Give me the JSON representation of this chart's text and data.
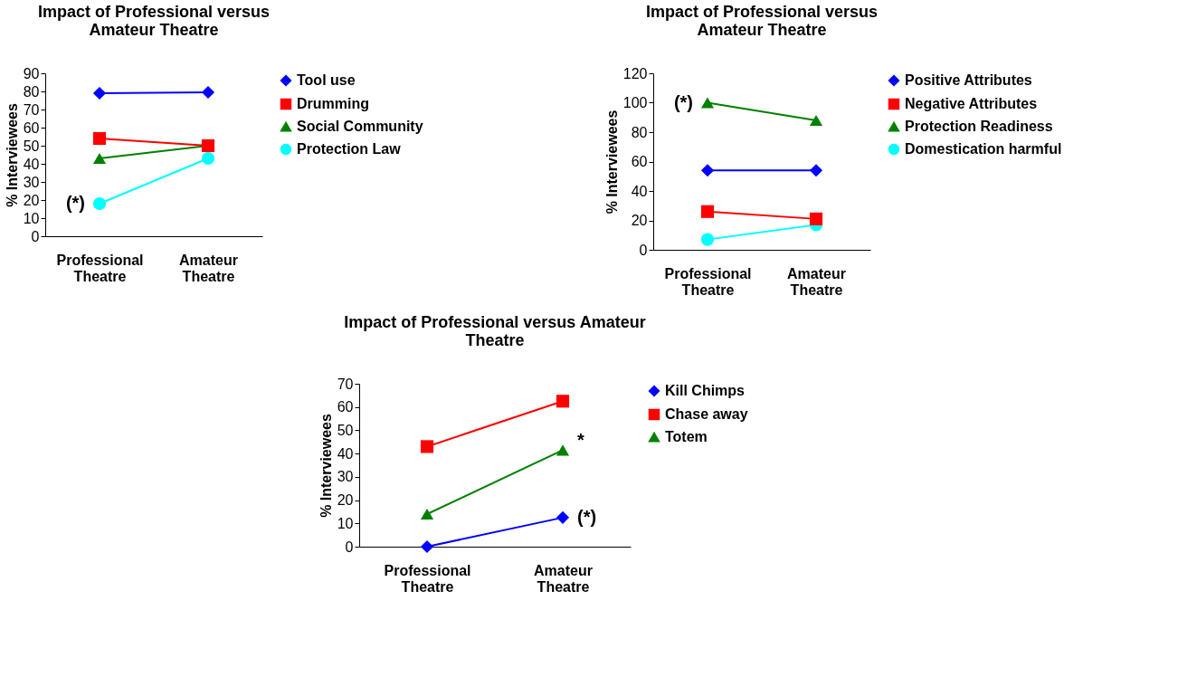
{
  "chart_data": [
    {
      "type": "line",
      "title": "Impact of Professional versus\nAmateur Theatre",
      "ylabel": "% Interviewees",
      "categories": [
        "Professional Theatre",
        "Amateur Theatre"
      ],
      "ylim": [
        0,
        90
      ],
      "yticks": [
        0,
        10,
        20,
        30,
        40,
        50,
        60,
        70,
        80,
        90
      ],
      "grid": false,
      "legend": "right",
      "line_style": "solid",
      "series": [
        {
          "name": "Tool use",
          "color": "#0000ff",
          "marker": "diamond",
          "values": [
            79,
            79.5
          ]
        },
        {
          "name": "Drumming",
          "color": "#ff0000",
          "marker": "square",
          "values": [
            54,
            50
          ]
        },
        {
          "name": "Social Community",
          "color": "#008000",
          "marker": "triangle",
          "values": [
            43,
            50
          ]
        },
        {
          "name": "Protection Law",
          "color": "#00ffff",
          "marker": "circle",
          "values": [
            18,
            43
          ]
        }
      ],
      "annotations": [
        {
          "text": "(*)",
          "x": "Professional Theatre",
          "y": 18
        }
      ]
    },
    {
      "type": "line",
      "title": "Impact of Professional versus\nAmateur Theatre",
      "ylabel": "% Interviewees",
      "categories": [
        "Professional Theatre",
        "Amateur Theatre"
      ],
      "ylim": [
        0,
        120
      ],
      "yticks": [
        0,
        20,
        40,
        60,
        80,
        100,
        120
      ],
      "grid": false,
      "legend": "right",
      "line_style": "solid",
      "series": [
        {
          "name": "Positive Attributes",
          "color": "#0000ff",
          "marker": "diamond",
          "values": [
            54,
            54
          ]
        },
        {
          "name": "Negative Attributes",
          "color": "#ff0000",
          "marker": "square",
          "values": [
            26,
            21
          ]
        },
        {
          "name": "Protection Readiness",
          "color": "#008000",
          "marker": "triangle",
          "values": [
            100,
            88
          ]
        },
        {
          "name": "Domestication harmful",
          "color": "#00ffff",
          "marker": "circle",
          "values": [
            7,
            17
          ]
        }
      ],
      "annotations": [
        {
          "text": "(*)",
          "x": "Professional Theatre",
          "y": 100
        }
      ]
    },
    {
      "type": "line",
      "title": "Impact of Professional versus Amateur\nTheatre",
      "ylabel": "% Interviewees",
      "categories": [
        "Professional Theatre",
        "Amateur Theatre"
      ],
      "ylim": [
        0,
        70
      ],
      "yticks": [
        0,
        10,
        20,
        30,
        40,
        50,
        60,
        70
      ],
      "grid": false,
      "legend": "right",
      "line_style": "solid",
      "series": [
        {
          "name": "Kill Chimps",
          "color": "#0000ff",
          "marker": "diamond",
          "values": [
            0,
            12.5
          ]
        },
        {
          "name": "Chase away",
          "color": "#ff0000",
          "marker": "square",
          "values": [
            43,
            62.5
          ]
        },
        {
          "name": "Totem",
          "color": "#008000",
          "marker": "triangle",
          "values": [
            14,
            41.5
          ]
        }
      ],
      "annotations": [
        {
          "text": "*",
          "x": "Amateur Theatre",
          "y": 41.5
        },
        {
          "text": "(*)",
          "x": "Amateur Theatre",
          "y": 12.5
        }
      ]
    }
  ]
}
